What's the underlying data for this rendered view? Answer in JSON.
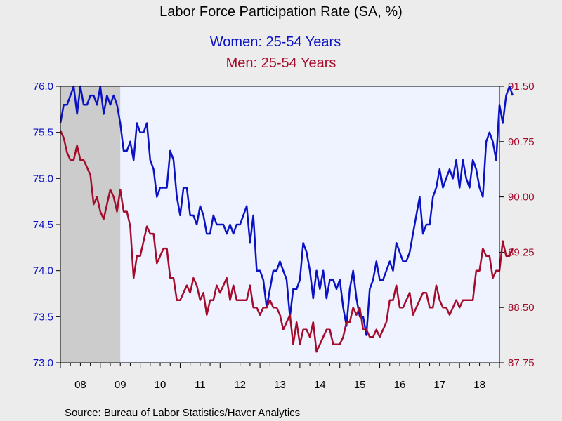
{
  "chart_data": {
    "type": "line",
    "title": "Labor Force Participation Rate (SA, %)",
    "series": [
      {
        "name": "Women: 25-54 Years",
        "axis": "left",
        "color": "#0b12c4",
        "start": 2008,
        "step_months": 1,
        "values": [
          75.6,
          75.8,
          75.8,
          75.9,
          76.0,
          75.7,
          76.0,
          75.8,
          75.8,
          75.9,
          75.9,
          75.8,
          76.0,
          75.7,
          75.9,
          75.8,
          75.9,
          75.8,
          75.6,
          75.3,
          75.3,
          75.4,
          75.2,
          75.6,
          75.5,
          75.5,
          75.6,
          75.2,
          75.1,
          74.8,
          74.9,
          74.9,
          74.9,
          75.3,
          75.2,
          74.8,
          74.6,
          74.9,
          74.9,
          74.6,
          74.6,
          74.5,
          74.7,
          74.6,
          74.4,
          74.4,
          74.6,
          74.5,
          74.5,
          74.5,
          74.4,
          74.5,
          74.4,
          74.5,
          74.5,
          74.6,
          74.7,
          74.3,
          74.6,
          74.0,
          74.0,
          73.9,
          73.6,
          73.8,
          74.0,
          74.0,
          74.1,
          74.0,
          73.9,
          73.5,
          73.8,
          73.8,
          73.9,
          74.3,
          74.2,
          74.0,
          73.7,
          74.0,
          73.8,
          74.0,
          73.7,
          73.9,
          73.9,
          73.8,
          73.9,
          73.6,
          73.4,
          73.8,
          74.0,
          73.7,
          73.5,
          73.5,
          73.3,
          73.8,
          73.9,
          74.1,
          73.9,
          73.9,
          74.0,
          74.1,
          74.0,
          74.3,
          74.2,
          74.1,
          74.1,
          74.2,
          74.4,
          74.6,
          74.8,
          74.4,
          74.5,
          74.5,
          74.8,
          74.9,
          75.1,
          74.9,
          75.0,
          75.1,
          75.0,
          75.2,
          74.9,
          75.2,
          75.0,
          74.9,
          75.2,
          75.1,
          74.9,
          74.8,
          75.4,
          75.5,
          75.4,
          75.2,
          75.8,
          75.6,
          75.9,
          76.0,
          75.9
        ]
      },
      {
        "name": "Men: 25-54 Years",
        "axis": "right",
        "color": "#a50c2c",
        "start": 2008,
        "step_months": 1,
        "values": [
          90.9,
          90.8,
          90.6,
          90.5,
          90.5,
          90.7,
          90.5,
          90.5,
          90.4,
          90.3,
          89.9,
          90.0,
          89.8,
          89.7,
          89.9,
          90.1,
          90.0,
          89.8,
          90.1,
          89.8,
          89.8,
          89.6,
          88.9,
          89.2,
          89.2,
          89.4,
          89.6,
          89.5,
          89.5,
          89.1,
          89.2,
          89.3,
          89.3,
          88.9,
          88.9,
          88.6,
          88.6,
          88.7,
          88.8,
          88.7,
          88.9,
          88.8,
          88.6,
          88.7,
          88.4,
          88.6,
          88.6,
          88.8,
          88.7,
          88.8,
          88.9,
          88.6,
          88.8,
          88.6,
          88.6,
          88.6,
          88.6,
          88.8,
          88.5,
          88.5,
          88.4,
          88.5,
          88.5,
          88.6,
          88.5,
          88.5,
          88.4,
          88.2,
          88.3,
          88.4,
          88.0,
          88.3,
          88.0,
          88.2,
          88.2,
          88.1,
          88.3,
          87.9,
          88.0,
          88.1,
          88.2,
          88.2,
          88.0,
          88.0,
          88.0,
          88.1,
          88.3,
          88.3,
          88.5,
          88.4,
          88.5,
          88.2,
          88.2,
          88.1,
          88.1,
          88.2,
          88.1,
          88.2,
          88.3,
          88.6,
          88.6,
          88.8,
          88.5,
          88.5,
          88.6,
          88.7,
          88.4,
          88.5,
          88.6,
          88.7,
          88.7,
          88.5,
          88.5,
          88.8,
          88.6,
          88.5,
          88.5,
          88.4,
          88.5,
          88.6,
          88.5,
          88.6,
          88.6,
          88.6,
          88.6,
          89.0,
          89.0,
          89.3,
          89.2,
          89.2,
          88.9,
          89.0,
          89.0,
          89.4,
          89.2,
          89.2,
          89.3
        ]
      }
    ],
    "left_axis": {
      "ylim": [
        73.0,
        76.0
      ],
      "ticks": [
        "76.0",
        "75.5",
        "75.0",
        "74.5",
        "74.0",
        "73.5",
        "73.0"
      ],
      "tick_values": [
        76.0,
        75.5,
        75.0,
        74.5,
        74.0,
        73.5,
        73.0
      ],
      "color": "#0b12c4"
    },
    "right_axis": {
      "ylim": [
        87.75,
        91.5
      ],
      "ticks": [
        "91.50",
        "90.75",
        "90.00",
        "89.25",
        "88.50",
        "87.75"
      ],
      "tick_values": [
        91.5,
        90.75,
        90.0,
        89.25,
        88.5,
        87.75
      ],
      "color": "#a50c2c"
    },
    "x_axis": {
      "range": [
        2008,
        2019
      ],
      "labels": [
        "08",
        "09",
        "10",
        "11",
        "12",
        "13",
        "14",
        "15",
        "16",
        "17",
        "18"
      ],
      "label_years": [
        2008,
        2009,
        2010,
        2011,
        2012,
        2013,
        2014,
        2015,
        2016,
        2017,
        2018
      ]
    },
    "recession": {
      "start": 2008.0,
      "end": 2009.5
    },
    "source": "Source:  Bureau of Labor Statistics/Haver Analytics"
  }
}
